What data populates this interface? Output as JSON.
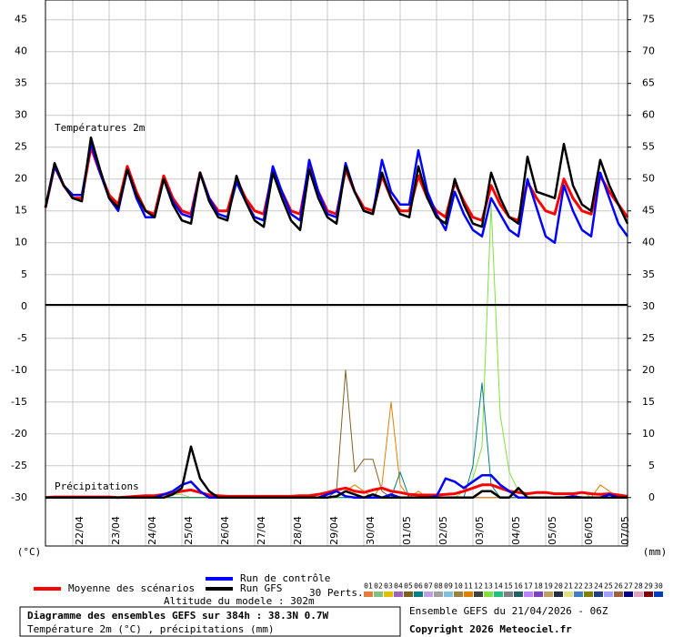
{
  "chart_data": {
    "type": "line",
    "title": "Diagramme des ensembles GEFS sur 384h : 38.3N 0.7W",
    "subtitle": "Température 2m (°C) , précipitations (mm)",
    "temp_label": "Températures 2m",
    "precip_label": "Précipitations",
    "ylabel": "(°C)",
    "y2label": "(mm)",
    "altitude": "Altitude du modele : 302m",
    "run_info": "Ensemble GEFS du 21/04/2026 - 06Z",
    "copyright": "Copyright 2026 Meteociel.fr",
    "grid": true,
    "x": [
      0,
      6,
      12,
      18,
      24,
      30,
      36,
      42,
      48,
      54,
      60,
      66,
      72,
      78,
      84,
      90,
      96,
      102,
      108,
      114,
      120,
      126,
      132,
      138,
      144,
      150,
      156,
      162,
      168,
      174,
      180,
      186,
      192,
      198,
      204,
      210,
      216,
      222,
      228,
      234,
      240,
      246,
      252,
      258,
      264,
      270,
      276,
      282,
      288,
      294,
      300,
      306,
      312,
      318,
      324,
      330,
      336,
      342,
      348,
      354,
      360,
      366,
      372,
      378,
      384
    ],
    "xlim": [
      0,
      384
    ],
    "xticks": [
      {
        "value": 18,
        "label": "22/04"
      },
      {
        "value": 42,
        "label": "23/04"
      },
      {
        "value": 66,
        "label": "24/04"
      },
      {
        "value": 90,
        "label": "25/04"
      },
      {
        "value": 114,
        "label": "26/04"
      },
      {
        "value": 138,
        "label": "27/04"
      },
      {
        "value": 162,
        "label": "28/04"
      },
      {
        "value": 186,
        "label": "29/04"
      },
      {
        "value": 210,
        "label": "30/04"
      },
      {
        "value": 234,
        "label": "01/05"
      },
      {
        "value": 258,
        "label": "02/05"
      },
      {
        "value": 282,
        "label": "03/05"
      },
      {
        "value": 306,
        "label": "04/05"
      },
      {
        "value": 330,
        "label": "05/05"
      },
      {
        "value": 354,
        "label": "06/05"
      },
      {
        "value": 378,
        "label": "07/05"
      }
    ],
    "ylim": [
      -37.6,
      48.1
    ],
    "yticks": [
      -30,
      -25,
      -20,
      -15,
      -10,
      -5,
      0,
      5,
      10,
      15,
      20,
      25,
      30,
      35,
      40,
      45
    ],
    "y2lim": [
      -7.6,
      78.1
    ],
    "y2ticks": [
      0,
      5,
      10,
      15,
      20,
      25,
      30,
      35,
      40,
      45,
      50,
      55,
      60,
      65,
      70,
      75
    ],
    "series": [
      {
        "name": "Moyenne des scénarios",
        "color": "#ff0000",
        "width": 3,
        "values": [
          15.5,
          22,
          19,
          17,
          17,
          25,
          21,
          17.5,
          16,
          22,
          18,
          15,
          14.5,
          20.5,
          17,
          15,
          14.5,
          21,
          17,
          15,
          15,
          20,
          17,
          15,
          14.5,
          21,
          18,
          15,
          14.5,
          22,
          18,
          15,
          14.5,
          21.5,
          18,
          15.5,
          15,
          20.5,
          17,
          15,
          15,
          20.5,
          17,
          15,
          14,
          19.5,
          16.5,
          14,
          13.5,
          19,
          16,
          14,
          13.5,
          19.5,
          17,
          15,
          14.5,
          20,
          17,
          15,
          14.5,
          20.5,
          18,
          16,
          14
        ]
      },
      {
        "name": "Run de contrôle",
        "color": "#0000ff",
        "width": 2.5,
        "values": [
          15.5,
          22,
          19,
          17.5,
          17.5,
          25.5,
          21,
          17,
          15,
          21.5,
          17,
          14,
          14,
          20,
          16.5,
          14.5,
          14,
          21,
          17,
          14.5,
          14,
          19.5,
          16.5,
          14,
          13.5,
          22,
          18,
          14.5,
          13.5,
          23,
          18,
          14.5,
          14,
          22.5,
          18,
          15,
          14.5,
          23,
          18,
          16,
          16,
          24.5,
          18,
          14.5,
          12,
          18,
          14.5,
          12,
          11,
          17,
          14.5,
          12,
          11,
          20,
          15.5,
          11,
          10,
          19,
          15,
          12,
          11,
          21,
          17,
          13,
          11
        ]
      },
      {
        "name": "Run GFS",
        "color": "#000000",
        "width": 2.5,
        "values": [
          15.5,
          22.5,
          19,
          17,
          16.5,
          26.5,
          21.5,
          17,
          15.5,
          21.5,
          17.5,
          15,
          14,
          20,
          16,
          13.5,
          13,
          21,
          16.5,
          14,
          13.5,
          20.5,
          16.5,
          13.5,
          12.5,
          21,
          17,
          13.5,
          12,
          21.5,
          17,
          14,
          13,
          22,
          18,
          15,
          14.5,
          21,
          17,
          14.5,
          14,
          22,
          17,
          14,
          13,
          20,
          16,
          13,
          12.5,
          21,
          17,
          14,
          13,
          23.5,
          18,
          17.5,
          17,
          25.5,
          19,
          16,
          15,
          23,
          19,
          16,
          13
        ]
      },
      {
        "name": "13",
        "color": "#80e040",
        "width": 1,
        "axis": "y2",
        "values": [
          0,
          0,
          0,
          0,
          0,
          0,
          0,
          0,
          0,
          0,
          0,
          0,
          0,
          0.5,
          0.5,
          0.5,
          0,
          0,
          0,
          0,
          0,
          0,
          0,
          0,
          0,
          0,
          0,
          0,
          0,
          0,
          0,
          0,
          0,
          0,
          0,
          0,
          0,
          0,
          0,
          0,
          0,
          0,
          0,
          0,
          0,
          0,
          1,
          3,
          8,
          46,
          13,
          4,
          1,
          0,
          0,
          0,
          0,
          0,
          0,
          1,
          0,
          0,
          0,
          0,
          0
        ]
      },
      {
        "name": "05",
        "color": "#806020",
        "width": 1,
        "axis": "y2",
        "values": [
          0,
          0,
          0,
          0,
          0,
          0,
          0,
          0,
          0,
          0,
          0,
          0,
          0,
          0,
          0,
          0,
          0,
          0,
          0,
          0,
          0,
          0,
          0,
          0,
          0,
          0,
          0,
          0,
          0,
          0,
          0,
          0,
          1,
          20,
          4,
          6,
          6,
          1,
          0,
          0,
          0,
          0,
          0,
          0,
          0,
          0,
          0,
          0,
          0,
          0,
          0,
          0,
          0,
          0,
          0,
          0,
          0,
          0,
          0,
          0,
          0,
          0,
          0,
          0,
          0
        ]
      },
      {
        "name": "11",
        "color": "#e08000",
        "width": 1,
        "axis": "y2",
        "values": [
          0,
          0,
          0,
          0,
          0,
          0,
          0,
          0,
          0,
          0,
          0,
          0,
          0,
          0,
          0,
          0,
          0,
          0,
          0,
          0,
          0,
          0,
          0,
          0,
          0,
          0,
          0,
          0,
          0,
          0,
          0,
          0,
          0,
          1,
          2,
          1,
          0,
          2,
          15,
          2,
          0,
          1,
          0,
          0,
          0,
          0,
          0,
          0,
          0,
          0,
          0,
          0,
          0,
          0,
          0,
          0,
          0,
          0,
          0,
          0,
          0,
          2,
          1,
          0,
          0
        ]
      },
      {
        "name": "06",
        "color": "#008080",
        "width": 1,
        "axis": "y2",
        "values": [
          0,
          0,
          0,
          0,
          0,
          0,
          0,
          0,
          0,
          0,
          0,
          0,
          0,
          0,
          0,
          0,
          0,
          0,
          0,
          0,
          0,
          0,
          0,
          0,
          0,
          0,
          0,
          0,
          0,
          0,
          0,
          0,
          0,
          0,
          0,
          0,
          0,
          0,
          0,
          4,
          0,
          0,
          0,
          0,
          0,
          0,
          0,
          5,
          18,
          2,
          0,
          0,
          0,
          0,
          0,
          0,
          0,
          0,
          0,
          0,
          0,
          0,
          0,
          0,
          0
        ]
      },
      {
        "name": "Moyenne des scénarios",
        "color": "#ff0000",
        "width": 3,
        "axis": "y2",
        "values": [
          0,
          0.1,
          0.1,
          0.1,
          0.1,
          0.1,
          0.1,
          0.1,
          0,
          0.1,
          0.2,
          0.3,
          0.3,
          0.5,
          0.7,
          1,
          1.2,
          0.8,
          0.4,
          0.3,
          0.2,
          0.2,
          0.2,
          0.2,
          0.2,
          0.2,
          0.2,
          0.2,
          0.3,
          0.3,
          0.5,
          0.8,
          1.2,
          1.5,
          1,
          0.8,
          1.2,
          1.5,
          1,
          0.8,
          0.5,
          0.4,
          0.4,
          0.4,
          0.5,
          0.6,
          1,
          1.5,
          2,
          2,
          1.5,
          1,
          0.8,
          0.6,
          0.8,
          0.8,
          0.6,
          0.6,
          0.6,
          0.8,
          0.6,
          0.5,
          0.6,
          0.4,
          0.2
        ]
      },
      {
        "name": "Run de contrôle",
        "color": "#0000ff",
        "width": 2.5,
        "axis": "y2",
        "values": [
          0,
          0,
          0,
          0,
          0,
          0,
          0,
          0,
          0,
          0,
          0,
          0,
          0,
          0.5,
          1,
          2,
          2.5,
          1,
          0,
          0,
          0,
          0,
          0,
          0,
          0,
          0,
          0,
          0,
          0,
          0,
          0,
          0.5,
          1,
          0.2,
          0,
          0,
          0,
          0,
          0.5,
          0,
          0,
          0,
          0,
          0.2,
          3,
          2.5,
          1.5,
          2.5,
          3.5,
          3.5,
          2,
          1,
          0,
          0,
          0,
          0,
          0,
          0,
          0.2,
          0,
          0,
          0,
          0.5,
          0,
          0
        ]
      },
      {
        "name": "Run GFS",
        "color": "#000000",
        "width": 2.5,
        "axis": "y2",
        "values": [
          0,
          0,
          0,
          0,
          0,
          0,
          0,
          0,
          0,
          0,
          0,
          0,
          0,
          0,
          0.5,
          1.5,
          8,
          3,
          1,
          0,
          0,
          0,
          0,
          0,
          0,
          0,
          0,
          0,
          0,
          0,
          0,
          0,
          0.2,
          1,
          0.5,
          0,
          0.5,
          0,
          0,
          0,
          0,
          0,
          0,
          0,
          0,
          0,
          0,
          0,
          1,
          1,
          0,
          0,
          1.5,
          0,
          0,
          0,
          0,
          0,
          0,
          0,
          0,
          0,
          0,
          0,
          0
        ]
      }
    ],
    "perturbations_label": "30 Perts.",
    "perturbations": [
      {
        "name": "01",
        "color": "#e08040"
      },
      {
        "name": "02",
        "color": "#80c080"
      },
      {
        "name": "03",
        "color": "#e0c000"
      },
      {
        "name": "04",
        "color": "#a060c0"
      },
      {
        "name": "05",
        "color": "#806020"
      },
      {
        "name": "06",
        "color": "#008080"
      },
      {
        "name": "07",
        "color": "#c0a0e0"
      },
      {
        "name": "08",
        "color": "#a0a0a0"
      },
      {
        "name": "09",
        "color": "#80c0e0"
      },
      {
        "name": "10",
        "color": "#a08040"
      },
      {
        "name": "11",
        "color": "#e08000"
      },
      {
        "name": "12",
        "color": "#404040"
      },
      {
        "name": "13",
        "color": "#80e040"
      },
      {
        "name": "14",
        "color": "#20c080"
      },
      {
        "name": "15",
        "color": "#808080"
      },
      {
        "name": "16",
        "color": "#206060"
      },
      {
        "name": "17",
        "color": "#c080ff"
      },
      {
        "name": "18",
        "color": "#8040c0"
      },
      {
        "name": "19",
        "color": "#c0a060"
      },
      {
        "name": "20",
        "color": "#203040"
      },
      {
        "name": "21",
        "color": "#e0e080"
      },
      {
        "name": "22",
        "color": "#4080c0"
      },
      {
        "name": "23",
        "color": "#808000"
      },
      {
        "name": "24",
        "color": "#204080"
      },
      {
        "name": "25",
        "color": "#a0a0ff"
      },
      {
        "name": "26",
        "color": "#a06040"
      },
      {
        "name": "27",
        "color": "#000080"
      },
      {
        "name": "28",
        "color": "#e0a0c0"
      },
      {
        "name": "29",
        "color": "#800000"
      },
      {
        "name": "30",
        "color": "#0040c0"
      }
    ]
  }
}
